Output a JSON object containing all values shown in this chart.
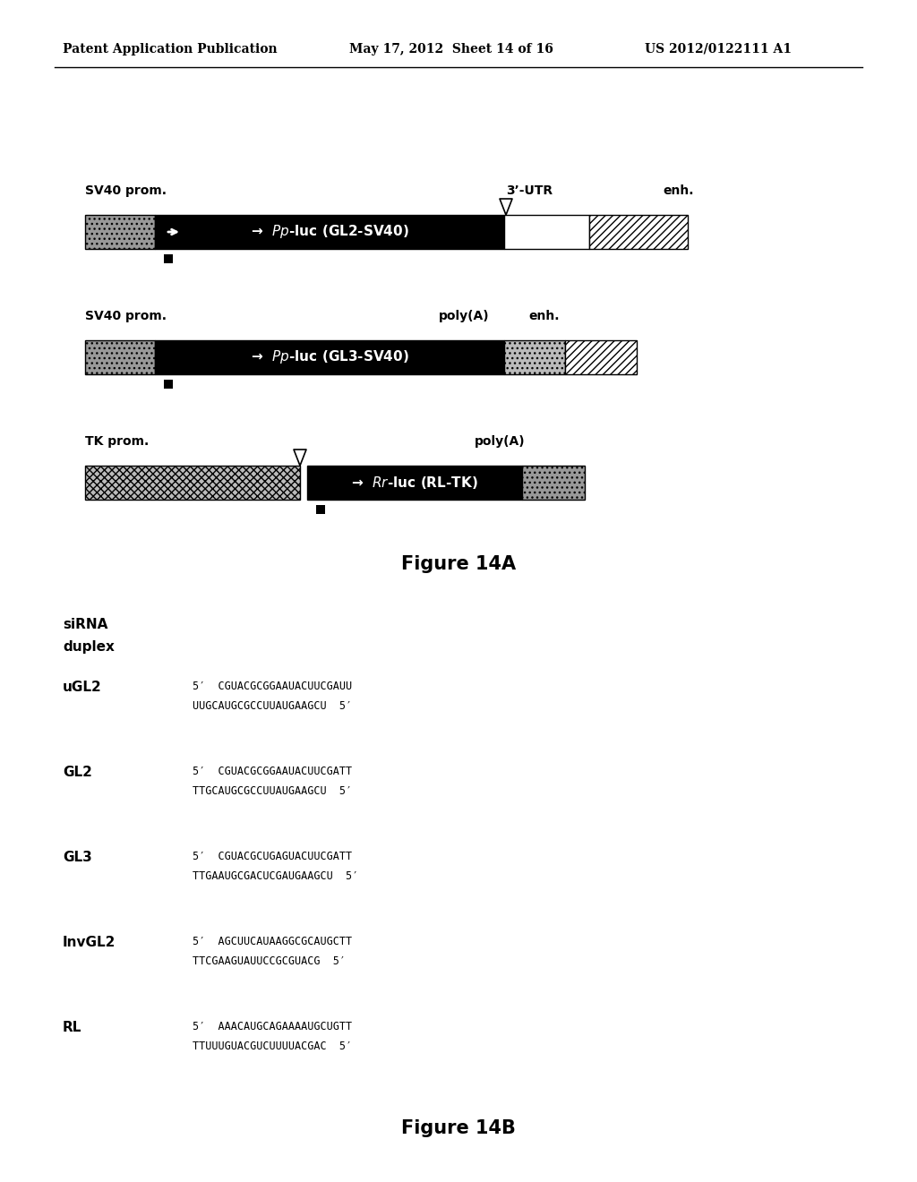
{
  "header_left": "Patent Application Publication",
  "header_mid": "May 17, 2012  Sheet 14 of 16",
  "header_right": "US 2012/0122111 A1",
  "figure_a_label": "Figure 14A",
  "figure_b_label": "Figure 14B",
  "sirna_header_line1": "siRNA",
  "sirna_header_line2": "duplex",
  "sequences": [
    {
      "name": "uGL2",
      "line1": "5′  CGUACGCGGAAUACUUCGAUU",
      "line2": "UUGCAUGCGCCUUAUGAAGCU  5′"
    },
    {
      "name": "GL2",
      "line1": "5′  CGUACGCGGAAUACUUCGATT",
      "line2": "TTGCAUGCGCCUUAUGAAGCU  5′"
    },
    {
      "name": "GL3",
      "line1": "5′  CGUACGCUGAGUACUUCGATT",
      "line2": "TTGAAUGCGACUCGAUGAAGCU  5′"
    },
    {
      "name": "InvGL2",
      "line1": "5′  AGCUUCAUAAGGCGCAUGCTT",
      "line2": "TTCGAAGUAUUCCGCGUACG  5′"
    },
    {
      "name": "RL",
      "line1": "5′  AAACAUGCAGAAAAUGCUGTT",
      "line2": "TTUUUGUACGUCUUUUACGAC  5′"
    }
  ],
  "bg_color": "#ffffff",
  "text_color": "#000000"
}
